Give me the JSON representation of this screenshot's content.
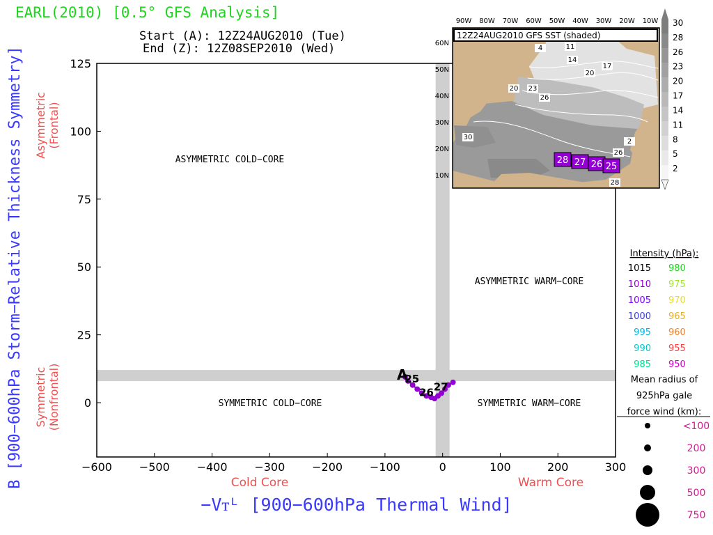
{
  "header": {
    "title": "EARL(2010) [0.5° GFS Analysis]",
    "start": "Start (A): 12Z24AUG2010 (Tue)",
    "end": "End (Z): 12Z08SEP2010 (Wed)"
  },
  "labels": {
    "x_axis": "−Vᴛᴸ [900−600hPa Thermal Wind]",
    "y_axis": "B [900−600hPa Storm−Relative Thickness Symmetry]",
    "cold_core": "Cold Core",
    "warm_core": "Warm Core",
    "asymmetric": "Asymmetric",
    "frontal": "(Frontal)",
    "symmetric": "Symmetric",
    "nonfrontal": "(Nonfrontal)"
  },
  "regions": {
    "asym_cold": "ASYMMETRIC COLD−CORE",
    "asym_warm": "ASYMMETRIC WARM−CORE",
    "sym_cold": "SYMMETRIC COLD−CORE",
    "sym_warm": "SYMMETRIC WARM−CORE"
  },
  "chart_data": {
    "type": "scatter",
    "xlabel": "−Vᴛᴸ [900−600hPa Thermal Wind]",
    "ylabel": "B [900−600hPa Storm−Relative Thickness Symmetry]",
    "xlim": [
      -600,
      300
    ],
    "ylim": [
      -20,
      125
    ],
    "xticks": [
      -600,
      -500,
      -400,
      -300,
      -200,
      -100,
      0,
      100,
      200,
      300
    ],
    "yticks": [
      0,
      25,
      50,
      75,
      100,
      125
    ],
    "xtick_labels": [
      "−600",
      "−500",
      "−400",
      "−300",
      "−200",
      "−100",
      "0",
      "100",
      "200",
      "300"
    ],
    "ytick_labels": [
      "0",
      "25",
      "50",
      "75",
      "100",
      "125"
    ],
    "thresholds": {
      "x": 0,
      "y": 10
    },
    "track": {
      "color": "#9400d3",
      "points": [
        {
          "x": -65,
          "y": 9.5
        },
        {
          "x": -60,
          "y": 8
        },
        {
          "x": -52,
          "y": 6.5
        },
        {
          "x": -44,
          "y": 5
        },
        {
          "x": -36,
          "y": 3.5
        },
        {
          "x": -28,
          "y": 2.5
        },
        {
          "x": -20,
          "y": 2
        },
        {
          "x": -14,
          "y": 1.5
        },
        {
          "x": -8,
          "y": 2.5
        },
        {
          "x": -2,
          "y": 3.5
        },
        {
          "x": 4,
          "y": 5
        },
        {
          "x": 10,
          "y": 6.5
        },
        {
          "x": 18,
          "y": 7.5
        }
      ]
    },
    "markers": [
      {
        "text": "A",
        "x": -70,
        "y": 10
      },
      {
        "text": "25",
        "x": -53,
        "y": 9
      },
      {
        "text": "26",
        "x": -28,
        "y": 4
      },
      {
        "text": "27",
        "x": -3,
        "y": 6
      }
    ]
  },
  "inset": {
    "title": "12Z24AUG2010 GFS SST (shaded)",
    "lon_labels": [
      "90W",
      "80W",
      "70W",
      "60W",
      "50W",
      "40W",
      "30W",
      "20W",
      "10W"
    ],
    "lat_labels": [
      "60N",
      "50N",
      "40N",
      "30N",
      "20N",
      "10N"
    ],
    "colorbar": [
      "30",
      "28",
      "26",
      "23",
      "20",
      "17",
      "14",
      "11",
      "8",
      "5",
      "2"
    ],
    "contour_labels": [
      "11",
      "14",
      "17",
      "20",
      "20",
      "23",
      "26",
      "30",
      "2",
      "26",
      "28",
      "4"
    ],
    "track_labels": [
      "28",
      "27",
      "26",
      "25"
    ],
    "track_color": "#9400d3"
  },
  "legend": {
    "intensity_title": "Intensity (hPa):",
    "intensity": [
      {
        "left": "1015",
        "left_color": "#000000",
        "right": "980",
        "right_color": "#1fd41f"
      },
      {
        "left": "1010",
        "left_color": "#9400d3",
        "right": "975",
        "right_color": "#a0e632"
      },
      {
        "left": "1005",
        "left_color": "#7f00ff",
        "right": "970",
        "right_color": "#e6dc32"
      },
      {
        "left": "1000",
        "left_color": "#3c3cdc",
        "right": "965",
        "right_color": "#e6af2d"
      },
      {
        "left": "995",
        "left_color": "#00b4dc",
        "right": "960",
        "right_color": "#f08228"
      },
      {
        "left": "990",
        "left_color": "#00c8c8",
        "right": "955",
        "right_color": "#fa3c3c"
      },
      {
        "left": "985",
        "left_color": "#00dc8c",
        "right": "950",
        "right_color": "#c800c8"
      }
    ],
    "radius_title": [
      "Mean radius of",
      "925hPa gale",
      "force wind (km):"
    ],
    "radius": [
      "<100",
      "200",
      "300",
      "500",
      "750"
    ],
    "radius_color": "#d31b8c"
  }
}
